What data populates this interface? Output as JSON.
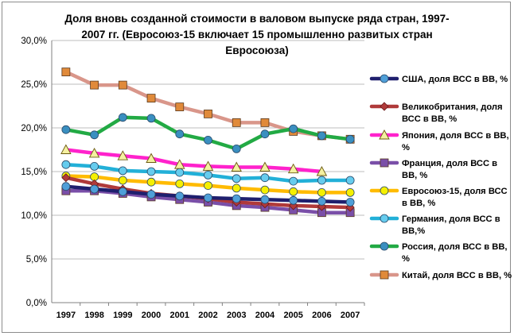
{
  "chart_data": {
    "type": "line",
    "title_lines": [
      "Доля вновь созданной стоимости в валовом выпуске ряда стран, 1997-",
      "2007 гг. (Евросоюз-15 включает 15 промышленно развитых стран",
      "Евросоюза)"
    ],
    "x": [
      "1997",
      "1998",
      "1999",
      "2000",
      "2001",
      "2002",
      "2003",
      "2004",
      "2005",
      "2006",
      "2007"
    ],
    "y_ticks": [
      "0,0%",
      "5,0%",
      "10,0%",
      "15,0%",
      "20,0%",
      "25,0%",
      "30,0%"
    ],
    "ylim": [
      0,
      30
    ],
    "grid": true,
    "legend_position": "right",
    "series": [
      {
        "name_lines": [
          "США, доля ВСС в ВВ, %"
        ],
        "color": "#1f1f6e",
        "marker": "circle",
        "marker_fill": "#4f9fd8",
        "values": [
          13.3,
          13.0,
          12.7,
          12.4,
          12.2,
          12.0,
          11.9,
          11.8,
          11.7,
          11.6,
          11.5
        ]
      },
      {
        "name_lines": [
          "Великобритания, доля",
          "ВСС в ВВ, %"
        ],
        "color": "#b03a3a",
        "marker": "diamond",
        "marker_fill": "#b03a3a",
        "values": [
          14.3,
          13.6,
          13.0,
          12.5,
          12.2,
          11.9,
          11.5,
          11.3,
          11.1,
          11.0,
          10.9
        ]
      },
      {
        "name_lines": [
          "Япония, доля ВСС в ВВ,",
          "%"
        ],
        "color": "#ff22cc",
        "marker": "triangle",
        "marker_fill": "#f5f0a0",
        "values": [
          17.5,
          17.1,
          16.8,
          16.5,
          15.8,
          15.6,
          15.5,
          15.5,
          15.3,
          15.0,
          null
        ]
      },
      {
        "name_lines": [
          "Франция, доля ВСС в",
          "ВВ, %"
        ],
        "color": "#7a4fa8",
        "marker": "square",
        "marker_fill": "#7a4fa8",
        "values": [
          12.8,
          12.8,
          12.5,
          12.1,
          11.8,
          11.5,
          11.1,
          10.9,
          10.6,
          10.3,
          10.3
        ]
      },
      {
        "name_lines": [
          "Евросоюз-15, доля ВСС",
          "в ВВ, %"
        ],
        "color": "#ffbb00",
        "marker": "circle",
        "marker_fill": "#f5f000",
        "values": [
          14.5,
          14.4,
          14.0,
          13.8,
          13.6,
          13.4,
          13.1,
          12.9,
          12.7,
          12.6,
          12.6
        ]
      },
      {
        "name_lines": [
          "Германия, доля ВСС в",
          "ВВ,%"
        ],
        "color": "#22b0d8",
        "marker": "circle",
        "marker_fill": "#66ccee",
        "values": [
          15.8,
          15.6,
          15.1,
          15.0,
          14.9,
          14.6,
          14.2,
          14.3,
          13.9,
          14.0,
          14.0
        ]
      },
      {
        "name_lines": [
          "Россия, доля ВСС в ВВ,",
          "%"
        ],
        "color": "#22aa44",
        "marker": "circle",
        "marker_fill": "#3a8fc0",
        "values": [
          19.8,
          19.2,
          21.2,
          21.1,
          19.3,
          18.6,
          17.6,
          19.3,
          19.9,
          19.1,
          18.7
        ]
      },
      {
        "name_lines": [
          "Китай, доля ВСС в ВВ, %"
        ],
        "color": "#d9968a",
        "marker": "square",
        "marker_fill": "#e08a3a",
        "values": [
          26.4,
          24.9,
          24.9,
          23.4,
          22.4,
          21.6,
          20.6,
          20.6,
          19.6,
          19.1,
          18.7
        ]
      }
    ]
  }
}
